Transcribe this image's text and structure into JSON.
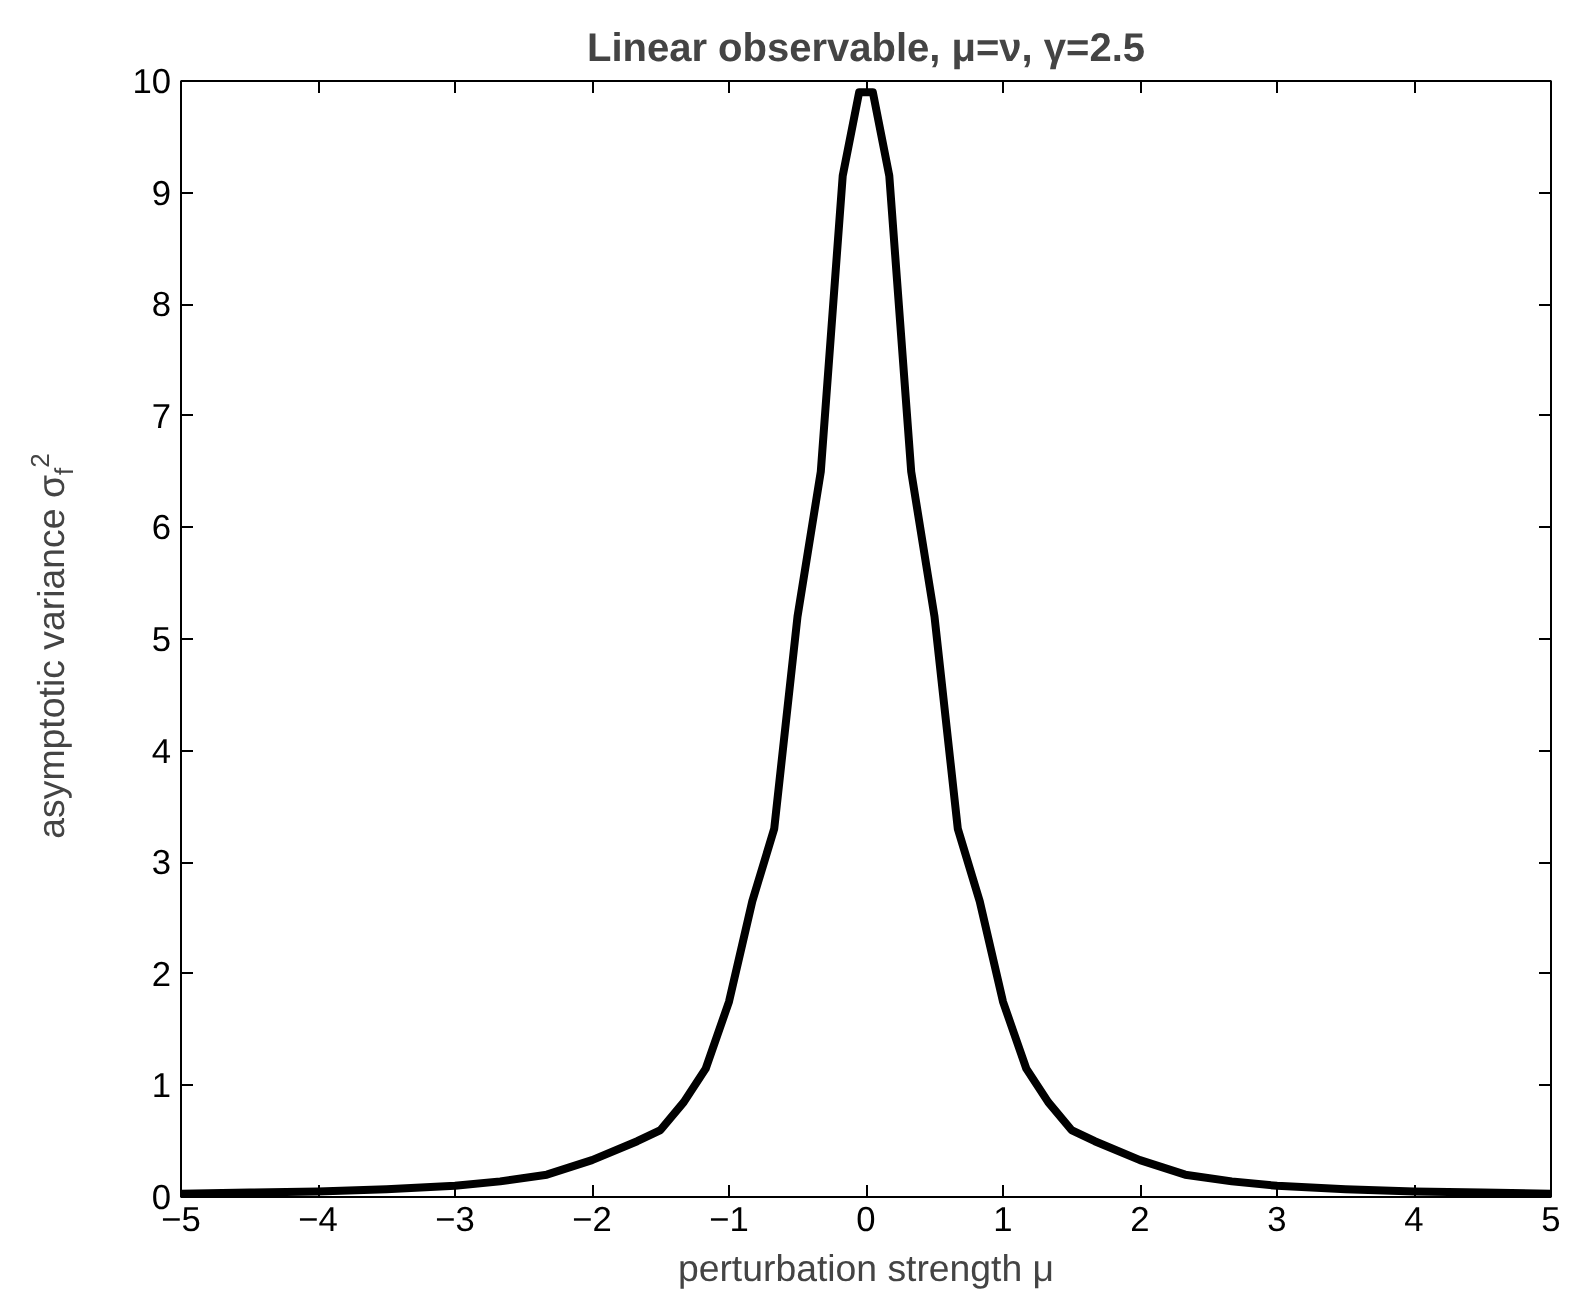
{
  "chart_data": {
    "type": "line",
    "title": "Linear observable, μ=ν, γ=2.5",
    "xlabel": "perturbation strength μ",
    "ylabel": "asymptotic variance σ$_{f}$$^{2}$",
    "x": [
      -5,
      -4.5,
      -4,
      -3.5,
      -3,
      -2.67,
      -2.33,
      -2,
      -1.67,
      -1.5,
      -1.33,
      -1.17,
      -1,
      -0.83,
      -0.67,
      -0.5,
      -0.33,
      -0.17,
      -0.05,
      0.05,
      0.17,
      0.33,
      0.5,
      0.67,
      0.83,
      1,
      1.17,
      1.33,
      1.5,
      1.67,
      2,
      2.33,
      2.67,
      3,
      3.5,
      4,
      4.5,
      5
    ],
    "series": [
      {
        "color": "#000000",
        "values": [
          0.03,
          0.04,
          0.05,
          0.07,
          0.1,
          0.14,
          0.2,
          0.33,
          0.5,
          0.6,
          0.85,
          1.15,
          1.75,
          2.65,
          3.3,
          5.2,
          6.5,
          9.15,
          9.9,
          9.9,
          9.15,
          6.5,
          5.2,
          3.3,
          2.65,
          1.75,
          1.15,
          0.85,
          0.6,
          0.5,
          0.33,
          0.2,
          0.14,
          0.1,
          0.07,
          0.05,
          0.04,
          0.03
        ]
      }
    ],
    "xlim": [
      -5,
      5
    ],
    "ylim": [
      0,
      10
    ],
    "xticks": [
      -5,
      -4,
      -3,
      -2,
      -1,
      0,
      1,
      2,
      3,
      4,
      5
    ],
    "yticks": [
      0,
      1,
      2,
      3,
      4,
      5,
      6,
      7,
      8,
      9,
      10
    ],
    "grid": false,
    "line_style": "solid",
    "marker": "none"
  }
}
